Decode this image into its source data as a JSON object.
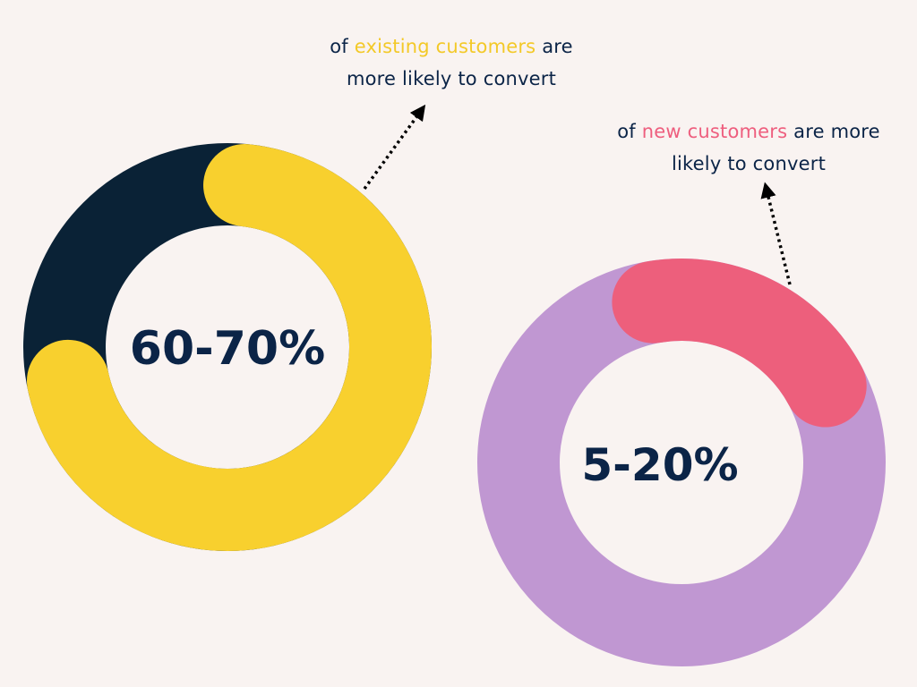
{
  "chart_data": [
    {
      "type": "donut",
      "center_label": "60-70%",
      "highlight_range_percent": [
        60,
        70
      ],
      "colors": {
        "highlight": "#f8d02e",
        "remainder": "#0a2236"
      },
      "caption": {
        "prefix": "of ",
        "highlight": "existing customers",
        "suffix_line1": " are",
        "line2": "more likely to convert"
      }
    },
    {
      "type": "donut",
      "center_label": "5-20%",
      "highlight_range_percent": [
        5,
        20
      ],
      "colors": {
        "highlight": "#ed5f7c",
        "remainder": "#c097d2"
      },
      "caption": {
        "prefix": "of ",
        "highlight": "new customers",
        "suffix_line1": " are more",
        "line2": "likely to convert"
      }
    }
  ],
  "colors": {
    "background": "#f9f3f1",
    "text": "#0b2447",
    "caption_highlight_1": "#f3c928",
    "caption_highlight_2": "#ee5e7e"
  }
}
